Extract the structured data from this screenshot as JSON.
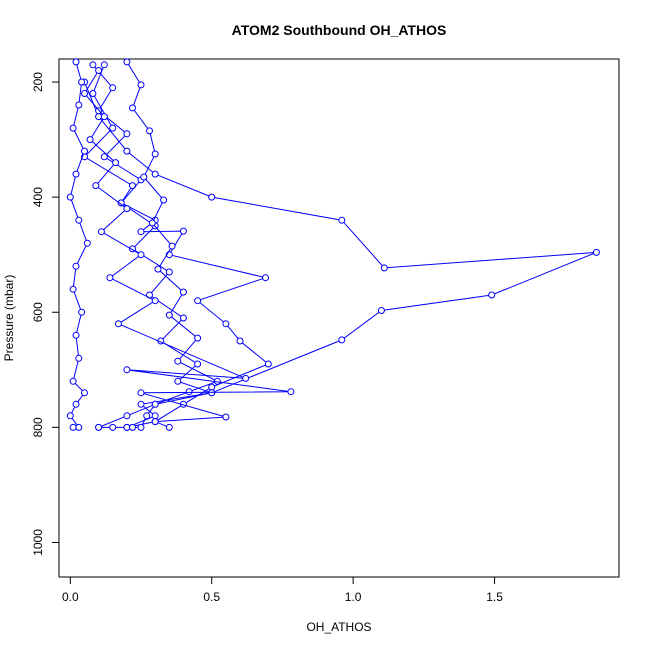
{
  "chart_data": {
    "type": "line",
    "title": "ATOM2 Southbound OH_ATHOS",
    "xlabel": "OH_ATHOS",
    "ylabel": "Pressure (mbar)",
    "xlim": [
      -0.04,
      1.94
    ],
    "ylim": [
      1060,
      160
    ],
    "y_inverted": true,
    "x_ticks": [
      0.0,
      0.5,
      1.0,
      1.5
    ],
    "x_tick_labels": [
      "0.0",
      "0.5",
      "1.0",
      "1.5"
    ],
    "y_ticks": [
      200,
      400,
      600,
      800,
      1000
    ],
    "y_tick_labels": [
      "200",
      "400",
      "600",
      "800",
      "1000"
    ],
    "grid": false,
    "legend": "none",
    "color": "#0000ff",
    "marker": "open-circle",
    "series": [
      {
        "x": [
          0.12,
          0.08,
          0.15,
          0.05,
          0.22,
          0.18,
          0.3,
          0.25,
          0.4,
          0.35,
          0.69,
          0.45,
          0.55,
          0.6,
          0.7,
          0.5,
          0.4,
          0.3,
          0.2,
          0.15,
          0.1
        ],
        "y": [
          170,
          220,
          280,
          330,
          380,
          410,
          440,
          460,
          459,
          500,
          540,
          580,
          620,
          650,
          690,
          730,
          760,
          790,
          800,
          800,
          800
        ]
      },
      {
        "x": [
          0.05,
          0.1,
          0.2,
          0.3,
          0.5,
          0.96,
          1.11,
          1.86,
          1.49,
          1.1,
          0.96,
          0.5,
          0.3,
          0.2,
          0.1
        ],
        "y": [
          200,
          260,
          320,
          360,
          400,
          440,
          523,
          496,
          570,
          597,
          648,
          740,
          760,
          780,
          800
        ]
      },
      {
        "x": [
          0.02,
          0.04,
          0.03,
          0.01,
          0.05,
          0.02,
          0.0,
          0.03,
          0.06,
          0.02,
          0.01,
          0.04,
          0.02,
          0.03,
          0.01,
          0.05,
          0.02,
          0.0,
          0.03,
          0.01
        ],
        "y": [
          165,
          200,
          240,
          280,
          320,
          360,
          400,
          440,
          480,
          520,
          560,
          600,
          640,
          680,
          720,
          740,
          760,
          780,
          800,
          800
        ]
      },
      {
        "x": [
          0.08,
          0.15,
          0.1,
          0.2,
          0.12,
          0.25,
          0.18,
          0.3,
          0.22,
          0.35,
          0.28,
          0.4,
          0.32,
          0.45,
          0.38,
          0.5,
          0.25,
          0.3,
          0.2
        ],
        "y": [
          170,
          210,
          250,
          290,
          330,
          370,
          410,
          450,
          490,
          530,
          570,
          610,
          650,
          690,
          720,
          740,
          760,
          780,
          800
        ]
      },
      {
        "x": [
          0.2,
          0.25,
          0.22,
          0.28,
          0.3,
          0.26,
          0.33,
          0.29,
          0.36,
          0.31,
          0.4,
          0.35,
          0.45,
          0.38,
          0.52,
          0.42,
          0.3,
          0.27,
          0.25,
          0.22
        ],
        "y": [
          165,
          205,
          245,
          285,
          325,
          365,
          405,
          445,
          485,
          525,
          565,
          605,
          645,
          685,
          720,
          738,
          760,
          780,
          800,
          800
        ]
      },
      {
        "x": [
          0.1,
          0.05,
          0.12,
          0.07,
          0.16,
          0.09,
          0.2,
          0.11,
          0.25,
          0.14,
          0.3,
          0.17,
          0.62,
          0.2,
          0.78,
          0.25,
          0.55,
          0.3,
          0.35
        ],
        "y": [
          180,
          220,
          260,
          300,
          340,
          380,
          420,
          460,
          500,
          540,
          580,
          620,
          715,
          700,
          738,
          740,
          782,
          790,
          800
        ]
      }
    ]
  }
}
